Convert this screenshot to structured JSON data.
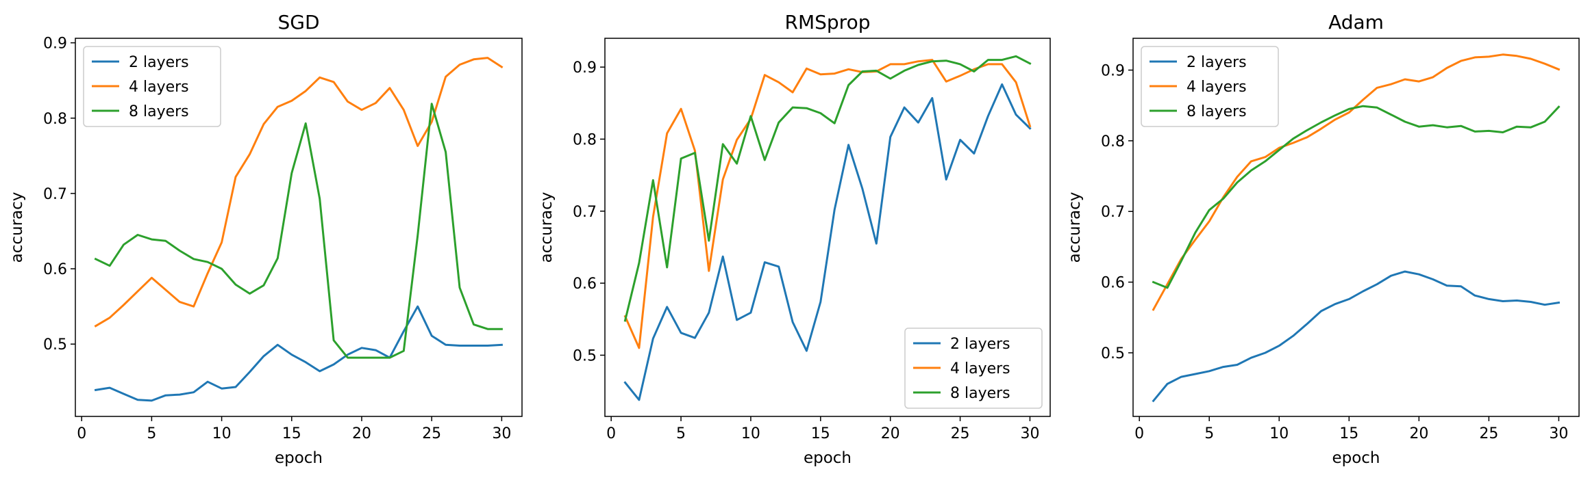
{
  "chart_data": [
    {
      "type": "line",
      "title": "SGD",
      "xlabel": "epoch",
      "ylabel": "accuracy",
      "xlim": [
        -0.45,
        31.45
      ],
      "ylim": [
        0.404,
        0.906
      ],
      "xticks": [
        0,
        5,
        10,
        15,
        20,
        25,
        30
      ],
      "yticks": [
        0.5,
        0.6,
        0.7,
        0.8,
        0.9
      ],
      "legend": "upper left",
      "grid": false,
      "x": [
        1,
        2,
        3,
        4,
        5,
        6,
        7,
        8,
        9,
        10,
        11,
        12,
        13,
        14,
        15,
        16,
        17,
        18,
        19,
        20,
        21,
        22,
        23,
        24,
        25,
        26,
        27,
        28,
        29,
        30
      ],
      "series": [
        {
          "name": "2 layers",
          "color": "#1f77b4",
          "values": [
            0.439,
            0.442,
            0.434,
            0.426,
            0.425,
            0.432,
            0.433,
            0.436,
            0.45,
            0.441,
            0.443,
            0.463,
            0.484,
            0.499,
            0.486,
            0.476,
            0.464,
            0.473,
            0.486,
            0.495,
            0.492,
            0.482,
            0.517,
            0.55,
            0.511,
            0.499,
            0.498,
            0.498,
            0.498,
            0.499
          ]
        },
        {
          "name": "4 layers",
          "color": "#ff7f0e",
          "values": [
            0.524,
            0.535,
            0.552,
            0.57,
            0.588,
            0.572,
            0.556,
            0.55,
            0.594,
            0.635,
            0.722,
            0.752,
            0.792,
            0.815,
            0.823,
            0.836,
            0.854,
            0.848,
            0.822,
            0.811,
            0.82,
            0.84,
            0.811,
            0.763,
            0.795,
            0.855,
            0.871,
            0.878,
            0.88,
            0.868
          ]
        },
        {
          "name": "8 layers",
          "color": "#2ca02c",
          "values": [
            0.613,
            0.604,
            0.632,
            0.645,
            0.639,
            0.637,
            0.624,
            0.613,
            0.609,
            0.6,
            0.579,
            0.567,
            0.578,
            0.614,
            0.727,
            0.793,
            0.693,
            0.505,
            0.482,
            0.482,
            0.482,
            0.482,
            0.491,
            0.644,
            0.819,
            0.755,
            0.575,
            0.526,
            0.52,
            0.52
          ]
        }
      ]
    },
    {
      "type": "line",
      "title": "RMSprop",
      "xlabel": "epoch",
      "ylabel": "accuracy",
      "xlim": [
        -0.45,
        31.45
      ],
      "ylim": [
        0.415,
        0.94
      ],
      "xticks": [
        0,
        5,
        10,
        15,
        20,
        25,
        30
      ],
      "yticks": [
        0.5,
        0.6,
        0.7,
        0.8,
        0.9
      ],
      "legend": "lower right",
      "grid": false,
      "x": [
        1,
        2,
        3,
        4,
        5,
        6,
        7,
        8,
        9,
        10,
        11,
        12,
        13,
        14,
        15,
        16,
        17,
        18,
        19,
        20,
        21,
        22,
        23,
        24,
        25,
        26,
        27,
        28,
        29,
        30
      ],
      "series": [
        {
          "name": "2 layers",
          "color": "#1f77b4",
          "values": [
            0.462,
            0.438,
            0.523,
            0.567,
            0.531,
            0.524,
            0.559,
            0.637,
            0.549,
            0.559,
            0.629,
            0.623,
            0.546,
            0.506,
            0.574,
            0.702,
            0.792,
            0.731,
            0.655,
            0.803,
            0.844,
            0.823,
            0.857,
            0.744,
            0.799,
            0.78,
            0.832,
            0.876,
            0.834,
            0.815
          ]
        },
        {
          "name": "4 layers",
          "color": "#ff7f0e",
          "values": [
            0.554,
            0.51,
            0.692,
            0.808,
            0.842,
            0.784,
            0.617,
            0.744,
            0.799,
            0.828,
            0.889,
            0.879,
            0.865,
            0.898,
            0.89,
            0.891,
            0.897,
            0.893,
            0.894,
            0.904,
            0.904,
            0.908,
            0.91,
            0.88,
            0.888,
            0.897,
            0.904,
            0.904,
            0.879,
            0.818
          ]
        },
        {
          "name": "8 layers",
          "color": "#2ca02c",
          "values": [
            0.548,
            0.628,
            0.743,
            0.622,
            0.773,
            0.781,
            0.659,
            0.793,
            0.766,
            0.832,
            0.771,
            0.823,
            0.844,
            0.843,
            0.836,
            0.822,
            0.875,
            0.894,
            0.895,
            0.884,
            0.895,
            0.903,
            0.908,
            0.909,
            0.904,
            0.894,
            0.91,
            0.91,
            0.915,
            0.905
          ]
        }
      ]
    },
    {
      "type": "line",
      "title": "Adam",
      "xlabel": "epoch",
      "ylabel": "accuracy",
      "xlim": [
        -0.45,
        31.45
      ],
      "ylim": [
        0.41,
        0.945
      ],
      "xticks": [
        0,
        5,
        10,
        15,
        20,
        25,
        30
      ],
      "yticks": [
        0.5,
        0.6,
        0.7,
        0.8,
        0.9
      ],
      "legend": "upper left",
      "grid": false,
      "x": [
        1,
        2,
        3,
        4,
        5,
        6,
        7,
        8,
        9,
        10,
        11,
        12,
        13,
        14,
        15,
        16,
        17,
        18,
        19,
        20,
        21,
        22,
        23,
        24,
        25,
        26,
        27,
        28,
        29,
        30
      ],
      "series": [
        {
          "name": "2 layers",
          "color": "#1f77b4",
          "values": [
            0.432,
            0.456,
            0.466,
            0.47,
            0.474,
            0.48,
            0.483,
            0.493,
            0.5,
            0.51,
            0.524,
            0.541,
            0.559,
            0.569,
            0.576,
            0.587,
            0.597,
            0.609,
            0.615,
            0.611,
            0.604,
            0.595,
            0.594,
            0.581,
            0.576,
            0.573,
            0.574,
            0.572,
            0.568,
            0.571
          ]
        },
        {
          "name": "4 layers",
          "color": "#ff7f0e",
          "values": [
            0.561,
            0.597,
            0.633,
            0.66,
            0.686,
            0.72,
            0.749,
            0.771,
            0.777,
            0.79,
            0.797,
            0.805,
            0.817,
            0.83,
            0.84,
            0.858,
            0.875,
            0.88,
            0.887,
            0.884,
            0.89,
            0.903,
            0.913,
            0.918,
            0.919,
            0.922,
            0.92,
            0.916,
            0.909,
            0.901
          ]
        },
        {
          "name": "8 layers",
          "color": "#2ca02c",
          "values": [
            0.6,
            0.592,
            0.63,
            0.67,
            0.702,
            0.718,
            0.741,
            0.758,
            0.771,
            0.787,
            0.803,
            0.815,
            0.826,
            0.836,
            0.845,
            0.849,
            0.847,
            0.837,
            0.827,
            0.82,
            0.822,
            0.819,
            0.821,
            0.813,
            0.814,
            0.812,
            0.82,
            0.819,
            0.827,
            0.848
          ]
        }
      ]
    }
  ]
}
